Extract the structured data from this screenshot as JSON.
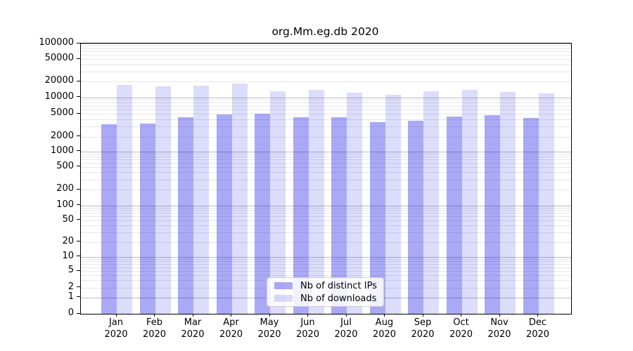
{
  "window": {
    "background": "#ffffff"
  },
  "chart_data": {
    "type": "bar",
    "title": "org.Mm.eg.db 2020",
    "categories": [
      {
        "month": "Jan",
        "year": "2020"
      },
      {
        "month": "Feb",
        "year": "2020"
      },
      {
        "month": "Mar",
        "year": "2020"
      },
      {
        "month": "Apr",
        "year": "2020"
      },
      {
        "month": "May",
        "year": "2020"
      },
      {
        "month": "Jun",
        "year": "2020"
      },
      {
        "month": "Jul",
        "year": "2020"
      },
      {
        "month": "Aug",
        "year": "2020"
      },
      {
        "month": "Sep",
        "year": "2020"
      },
      {
        "month": "Oct",
        "year": "2020"
      },
      {
        "month": "Nov",
        "year": "2020"
      },
      {
        "month": "Dec",
        "year": "2020"
      }
    ],
    "series": [
      {
        "name": "Nb of distinct IPs",
        "values": [
          3300,
          3400,
          4300,
          4800,
          5000,
          4400,
          4300,
          3600,
          3800,
          4500,
          4700,
          4200
        ],
        "color": "rgba(8,8,225,0.35)"
      },
      {
        "name": "Nb of downloads",
        "values": [
          17000,
          16300,
          16600,
          18100,
          13000,
          13700,
          12300,
          11000,
          13100,
          14000,
          12700,
          12000
        ],
        "color": "rgba(8,8,225,0.14)"
      }
    ],
    "y_axis": {
      "scale": "symlog",
      "ticks": [
        0,
        1,
        2,
        5,
        10,
        20,
        50,
        100,
        200,
        500,
        1000,
        2000,
        5000,
        10000,
        20000,
        50000,
        100000
      ],
      "range": [
        0,
        100000
      ],
      "grid": true
    },
    "x_axis": {
      "label_format": "month over year"
    },
    "legend": {
      "entries": [
        "Nb of distinct IPs",
        "Nb of downloads"
      ],
      "position": "inside-bottom-center"
    }
  }
}
